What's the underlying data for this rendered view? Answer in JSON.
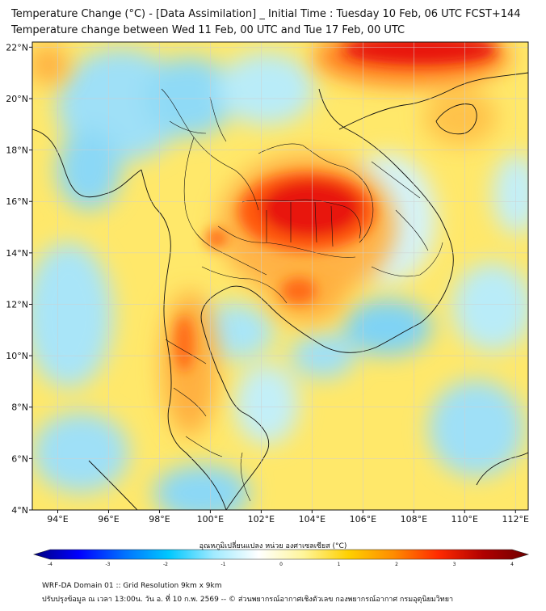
{
  "title_line1": "Temperature Change (°C) - [Data Assimilation] _ Initial Time : Tuesday 10 Feb, 06 UTC FCST+144",
  "title_line2": "Temperature change between Wed 11 Feb, 00 UTC and Tue 17 Feb, 00 UTC",
  "map": {
    "lon_ticks": [
      "94°E",
      "96°E",
      "98°E",
      "100°E",
      "102°E",
      "104°E",
      "106°E",
      "108°E",
      "110°E",
      "112°E"
    ],
    "lat_ticks": [
      "22°N",
      "20°N",
      "18°N",
      "16°N",
      "14°N",
      "12°N",
      "10°N",
      "8°N",
      "6°N",
      "4°N"
    ],
    "lon_range": [
      93,
      112.5
    ],
    "lat_range": [
      4,
      22.2
    ],
    "grid": true,
    "colors": {
      "ocean_base": "#ffe86a",
      "cool_blue": "#7fd3f5",
      "warm_orange": "#ff9a2a",
      "hot_red": "#e8140e",
      "border_line": "#111111"
    }
  },
  "colorbar": {
    "title": "อุณหภูมิเปลี่ยนแปลง หน่วย องศาเซลเซียส (°C)",
    "tick_labels": [
      "-4",
      "-3",
      "-2",
      "-1",
      "0",
      "1",
      "2",
      "3",
      "4"
    ],
    "range": [
      -4,
      4
    ],
    "stops": [
      "#00007f",
      "#0000ff",
      "#0070ff",
      "#00c8ff",
      "#a0eaff",
      "#ffffff",
      "#fff59a",
      "#ffd000",
      "#ff8c00",
      "#ff2a00",
      "#b00000",
      "#6e0000"
    ]
  },
  "footer_line1": "WRF-DA Domain 01 :: Grid Resolution 9km x 9km",
  "footer_line2": "ปรับปรุงข้อมูล ณ เวลา 13:00น. วัน อ. ที่ 10 ก.พ. 2569 -- © ส่วนพยากรณ์อากาศเชิงตัวเลข กองพยากรณ์อากาศ กรมอุตุนิยมวิทยา"
}
